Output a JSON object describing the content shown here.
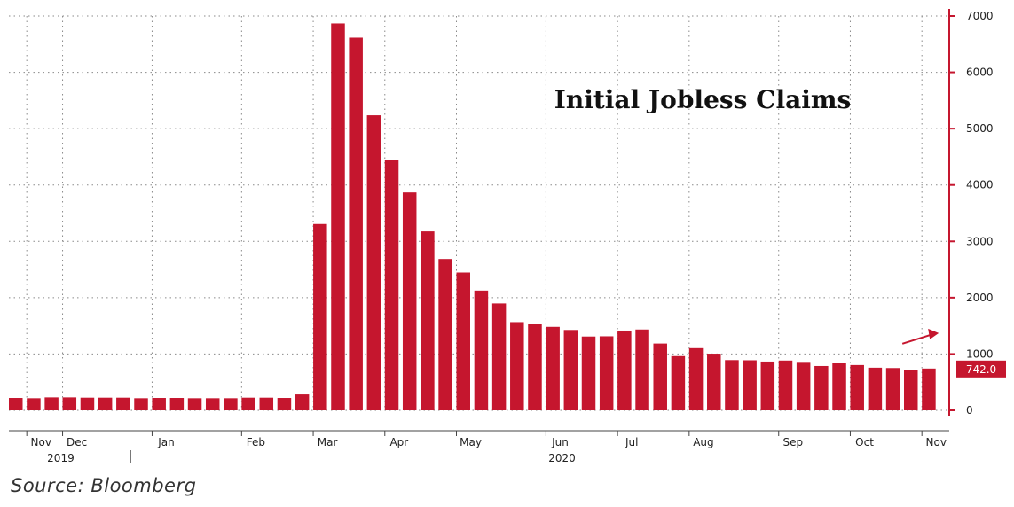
{
  "colors": {
    "bar": "#c5162e",
    "grid": "#8a8a8a",
    "axis": "#444444",
    "text": "#222222",
    "highlight": "#c5162e"
  },
  "source": "Source: Bloomberg",
  "chart_data": {
    "type": "bar",
    "title": "Initial Jobless Claims",
    "xlabel": "",
    "ylabel": "",
    "ylim": [
      0,
      7000
    ],
    "y_ticks": [
      0,
      1000,
      2000,
      3000,
      4000,
      5000,
      6000,
      7000
    ],
    "y_axis_position": "right",
    "grid": true,
    "legend": "none",
    "x_month_labels": [
      {
        "label": "Nov",
        "after_bar": 0
      },
      {
        "label": "Dec",
        "after_bar": 2
      },
      {
        "label": "Jan",
        "after_bar": 7
      },
      {
        "label": "Feb",
        "after_bar": 12
      },
      {
        "label": "Mar",
        "after_bar": 16
      },
      {
        "label": "Apr",
        "after_bar": 20
      },
      {
        "label": "May",
        "after_bar": 24
      },
      {
        "label": "Jun",
        "after_bar": 29
      },
      {
        "label": "Jul",
        "after_bar": 33
      },
      {
        "label": "Aug",
        "after_bar": 37
      },
      {
        "label": "Sep",
        "after_bar": 42
      },
      {
        "label": "Oct",
        "after_bar": 46
      },
      {
        "label": "Nov",
        "after_bar": 50
      }
    ],
    "x_year_labels": [
      {
        "label": "2019",
        "after_bar": 1
      },
      {
        "label": "2020",
        "after_bar": 29
      }
    ],
    "values": [
      220,
      215,
      230,
      230,
      225,
      225,
      225,
      215,
      220,
      220,
      215,
      215,
      215,
      225,
      225,
      220,
      282,
      3307,
      6867,
      6615,
      5237,
      4442,
      3867,
      3176,
      2687,
      2446,
      2126,
      1897,
      1566,
      1541,
      1482,
      1427,
      1310,
      1314,
      1416,
      1435,
      1186,
      963,
      1104,
      1006,
      892,
      889,
      866,
      884,
      860,
      787,
      840,
      804,
      757,
      751,
      709,
      742
    ],
    "last_value_label": "742.0"
  }
}
